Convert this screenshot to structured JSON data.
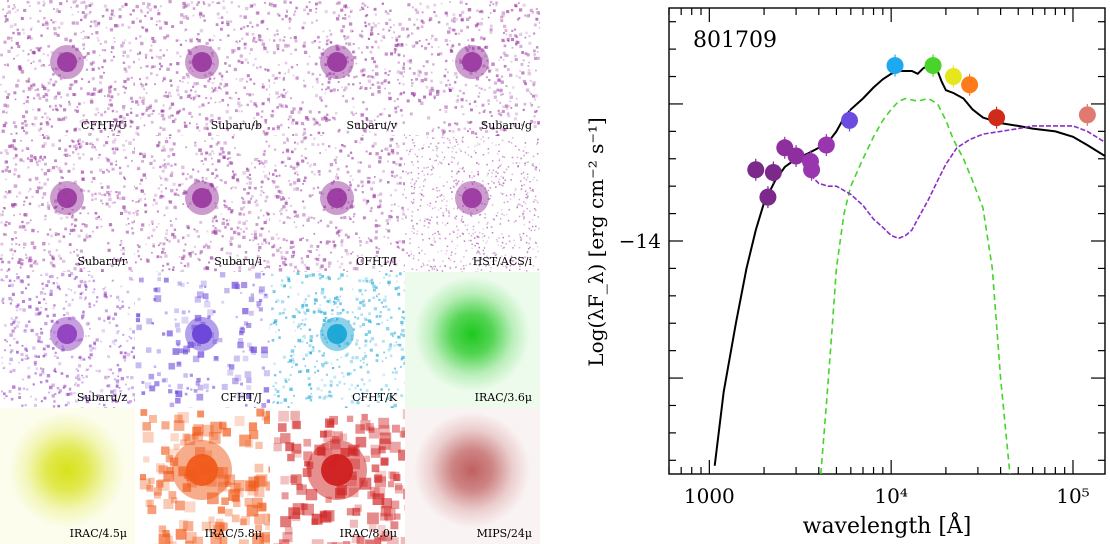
{
  "stamps": [
    {
      "label": "CFHT/U",
      "color": "#9a3aa0",
      "style": "noise"
    },
    {
      "label": "Subaru/b",
      "color": "#9a3aa0",
      "style": "noise"
    },
    {
      "label": "Subaru/v",
      "color": "#9a3aa0",
      "style": "noise"
    },
    {
      "label": "Subaru/g",
      "color": "#9a3aa0",
      "style": "noise"
    },
    {
      "label": "Subaru/r",
      "color": "#9a3aa0",
      "style": "noise"
    },
    {
      "label": "Subaru/i",
      "color": "#9a3aa0",
      "style": "noise"
    },
    {
      "label": "CFHT/I",
      "color": "#9a3aa0",
      "style": "noise"
    },
    {
      "label": "HST/ACS/i",
      "color": "#9a3aa0",
      "style": "fine"
    },
    {
      "label": "Subaru/z",
      "color": "#9040c0",
      "style": "noise"
    },
    {
      "label": "CFHT/J",
      "color": "#6a44d8",
      "style": "blobs"
    },
    {
      "label": "CFHT/K",
      "color": "#1aa6d6",
      "style": "noise"
    },
    {
      "label": "IRAC/3.6μ",
      "color": "#1ec81e",
      "style": "smooth"
    },
    {
      "label": "IRAC/4.5μ",
      "color": "#d8e21a",
      "style": "smooth"
    },
    {
      "label": "IRAC/5.8μ",
      "color": "#f05a1a",
      "style": "pixel"
    },
    {
      "label": "IRAC/8.0μ",
      "color": "#d02020",
      "style": "pixel"
    },
    {
      "label": "MIPS/24μ",
      "color": "#c06060",
      "style": "smooth"
    }
  ],
  "chart_data": {
    "type": "scatter",
    "title": "801709",
    "xlabel": "wavelength [Å]",
    "ylabel": "Log(λF_λ) [erg cm⁻² s⁻¹]",
    "x_scale": "log",
    "xlim": [
      600,
      150000
    ],
    "ylim": [
      -14.85,
      -13.15
    ],
    "x_tick_labels": [
      "1000",
      "10⁴",
      "10⁵"
    ],
    "y_tick_labels": [
      "−14"
    ],
    "photometry": [
      {
        "wavelength": 1800,
        "value": -13.74,
        "color": "#7b2a8c"
      },
      {
        "wavelength": 2100,
        "value": -13.84,
        "color": "#7b2a8c"
      },
      {
        "wavelength": 2250,
        "value": -13.75,
        "color": "#7b2a8c"
      },
      {
        "wavelength": 2600,
        "value": -13.66,
        "color": "#8e2fa0"
      },
      {
        "wavelength": 3000,
        "value": -13.69,
        "color": "#8e2fa0"
      },
      {
        "wavelength": 3600,
        "value": -13.71,
        "color": "#9a35b0"
      },
      {
        "wavelength": 3650,
        "value": -13.74,
        "color": "#9a35b0"
      },
      {
        "wavelength": 4400,
        "value": -13.65,
        "color": "#9a35b0"
      },
      {
        "wavelength": 5900,
        "value": -13.56,
        "color": "#6b4be0"
      },
      {
        "wavelength": 10500,
        "value": -13.36,
        "color": "#1ea8f0"
      },
      {
        "wavelength": 17000,
        "value": -13.36,
        "color": "#48d42a"
      },
      {
        "wavelength": 22000,
        "value": -13.4,
        "color": "#e6e61e"
      },
      {
        "wavelength": 27000,
        "value": -13.43,
        "color": "#ff7a1a"
      },
      {
        "wavelength": 38000,
        "value": -13.55,
        "color": "#d02a1a"
      },
      {
        "wavelength": 120000,
        "value": -13.54,
        "color": "#e07a70"
      }
    ],
    "series": [
      {
        "style": "solid",
        "color": "#000000",
        "x": [
          1070,
          1200,
          1400,
          1600,
          1800,
          2000,
          2300,
          2600,
          3000,
          3500,
          4000,
          4500,
          5000,
          5500,
          6000,
          7000,
          8000,
          9000,
          10000,
          11000,
          12000,
          13000,
          14000,
          15000,
          16000,
          17000,
          18000,
          19000,
          20000,
          22000,
          25000,
          28000,
          32000,
          36000,
          40000,
          50000,
          60000,
          80000,
          100000,
          120000,
          150000
        ],
        "y": [
          -14.82,
          -14.55,
          -14.3,
          -14.1,
          -13.96,
          -13.86,
          -13.78,
          -13.73,
          -13.7,
          -13.68,
          -13.66,
          -13.64,
          -13.6,
          -13.55,
          -13.52,
          -13.48,
          -13.44,
          -13.41,
          -13.39,
          -13.38,
          -13.38,
          -13.38,
          -13.39,
          -13.37,
          -13.36,
          -13.35,
          -13.38,
          -13.42,
          -13.45,
          -13.46,
          -13.48,
          -13.52,
          -13.55,
          -13.56,
          -13.57,
          -13.58,
          -13.59,
          -13.6,
          -13.62,
          -13.65,
          -13.69
        ]
      },
      {
        "style": "dashed",
        "color": "#44d42a",
        "x": [
          4100,
          4400,
          4700,
          5000,
          5500,
          6000,
          7000,
          8000,
          9000,
          10000,
          11000,
          12000,
          14000,
          16000,
          18000,
          20000,
          22000,
          25000,
          28000,
          32000,
          36000,
          40000,
          45000
        ],
        "y": [
          -14.85,
          -14.6,
          -14.35,
          -14.1,
          -13.9,
          -13.8,
          -13.7,
          -13.62,
          -13.56,
          -13.52,
          -13.49,
          -13.48,
          -13.49,
          -13.48,
          -13.5,
          -13.56,
          -13.63,
          -13.7,
          -13.78,
          -13.88,
          -14.1,
          -14.5,
          -14.85
        ]
      },
      {
        "style": "dashed",
        "color": "#8b2fc8",
        "x": [
          3600,
          4000,
          4500,
          5000,
          6000,
          7000,
          8000,
          9000,
          10000,
          11000,
          12000,
          13000,
          14000,
          16000,
          18000,
          20000,
          23000,
          27000,
          32000,
          40000,
          50000,
          60000,
          80000,
          100000,
          120000,
          150000
        ],
        "y": [
          -13.76,
          -13.79,
          -13.8,
          -13.8,
          -13.83,
          -13.87,
          -13.92,
          -13.95,
          -13.98,
          -13.99,
          -13.98,
          -13.96,
          -13.92,
          -13.85,
          -13.78,
          -13.72,
          -13.66,
          -13.63,
          -13.61,
          -13.6,
          -13.59,
          -13.58,
          -13.58,
          -13.58,
          -13.6,
          -13.64
        ]
      }
    ]
  }
}
